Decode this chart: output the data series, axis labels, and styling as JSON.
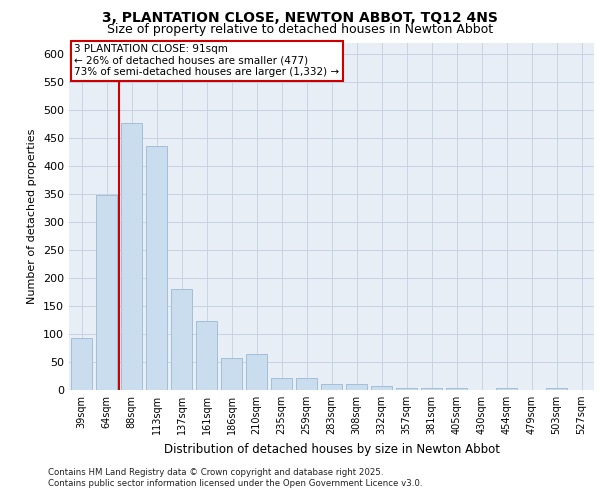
{
  "title_line1": "3, PLANTATION CLOSE, NEWTON ABBOT, TQ12 4NS",
  "title_line2": "Size of property relative to detached houses in Newton Abbot",
  "xlabel": "Distribution of detached houses by size in Newton Abbot",
  "ylabel": "Number of detached properties",
  "categories": [
    "39sqm",
    "64sqm",
    "88sqm",
    "113sqm",
    "137sqm",
    "161sqm",
    "186sqm",
    "210sqm",
    "235sqm",
    "259sqm",
    "283sqm",
    "308sqm",
    "332sqm",
    "357sqm",
    "381sqm",
    "405sqm",
    "430sqm",
    "454sqm",
    "479sqm",
    "503sqm",
    "527sqm"
  ],
  "values": [
    92,
    348,
    477,
    435,
    180,
    124,
    57,
    64,
    22,
    22,
    11,
    11,
    7,
    3,
    3,
    3,
    0,
    3,
    0,
    3,
    0
  ],
  "bar_color": "#c9ddef",
  "bar_edge_color": "#9bb8d4",
  "grid_color": "#c8d4e4",
  "background_color": "#e8eef6",
  "vline_x_index": 2,
  "vline_color": "#cc0000",
  "annotation_text": "3 PLANTATION CLOSE: 91sqm\n← 26% of detached houses are smaller (477)\n73% of semi-detached houses are larger (1,332) →",
  "annotation_box_facecolor": "#ffffff",
  "annotation_box_edgecolor": "#cc0000",
  "footer_text": "Contains HM Land Registry data © Crown copyright and database right 2025.\nContains public sector information licensed under the Open Government Licence v3.0.",
  "ylim": [
    0,
    620
  ],
  "yticks": [
    0,
    50,
    100,
    150,
    200,
    250,
    300,
    350,
    400,
    450,
    500,
    550,
    600
  ]
}
